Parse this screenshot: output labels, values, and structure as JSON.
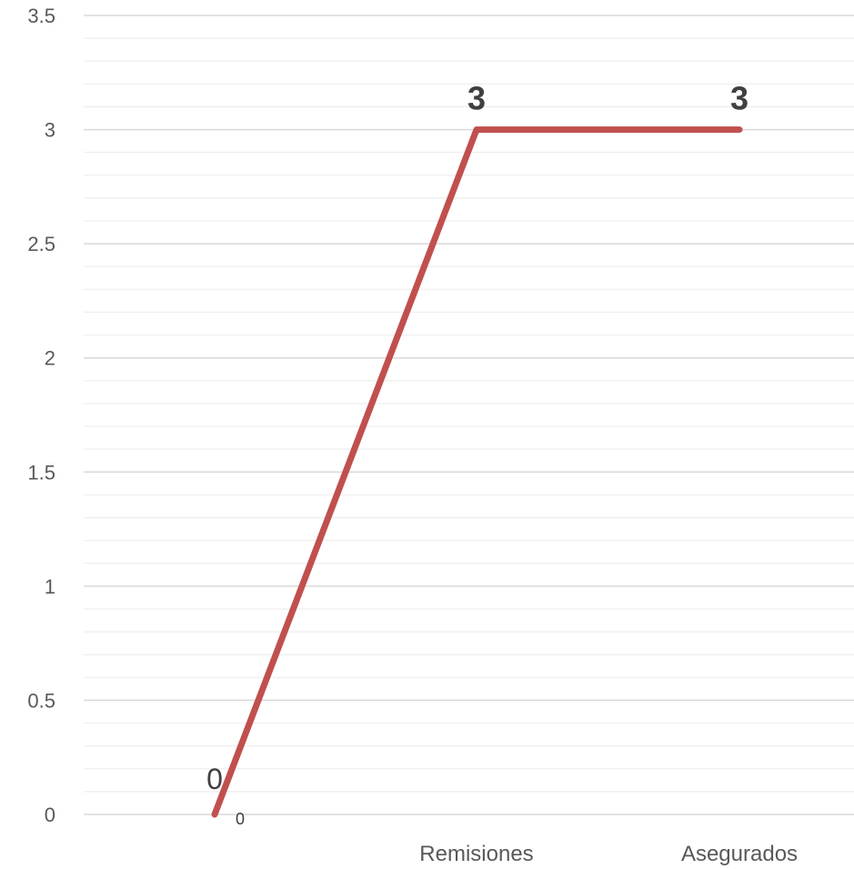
{
  "chart_data": {
    "type": "line",
    "title": "",
    "xlabel": "",
    "ylabel": "",
    "categories": [
      "",
      "Remisiones",
      "Asegurados"
    ],
    "series": [
      {
        "values": [
          0,
          3,
          3
        ],
        "color": "#c0504d"
      }
    ],
    "data_labels": [
      "0",
      "3",
      "3"
    ],
    "extra_labels": [
      "0"
    ],
    "ylim": [
      0,
      3.5
    ],
    "y_ticks": [
      "0",
      "0.5",
      "1",
      "1.5",
      "2",
      "2.5",
      "3",
      "3.5"
    ],
    "grid": "major and minor horizontal",
    "legend": "none"
  }
}
